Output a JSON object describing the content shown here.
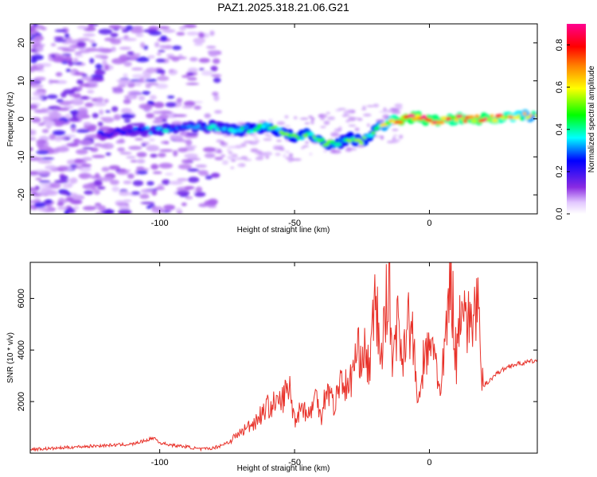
{
  "title": "PAZ1.2025.318.21.06.G21",
  "chart_data": [
    {
      "type": "heatmap",
      "xlabel": "Height of straight line (km)",
      "ylabel": "Frequency (Hz)",
      "xlim": [
        -148,
        40
      ],
      "ylim": [
        -25,
        25
      ],
      "xticks": [
        -100,
        -50,
        0
      ],
      "yticks": [
        -20,
        -10,
        0,
        10,
        20
      ],
      "colorbar": {
        "label": "Normalized spectral amplitude",
        "range": [
          0.0,
          0.9
        ],
        "ticks": [
          0.0,
          0.2,
          0.4,
          0.6,
          0.8
        ],
        "tick_labels": [
          "0.0",
          "0.2",
          "0.4",
          "0.6",
          "0.8"
        ],
        "colors": [
          "#ffffff",
          "#d9b8ff",
          "#8a2be2",
          "#0000ff",
          "#00ffff",
          "#00ff00",
          "#ffff00",
          "#ff8000",
          "#ff0000",
          "#ff0090"
        ]
      },
      "ridge": {
        "x": [
          -120,
          -110,
          -100,
          -90,
          -80,
          -70,
          -60,
          -50,
          -45,
          -40,
          -35,
          -30,
          -25,
          -20,
          -15,
          -10,
          -5,
          0,
          10,
          20,
          30,
          40
        ],
        "freq": [
          -4,
          -3,
          -3,
          -2,
          -2,
          -3,
          -2,
          -5,
          -4,
          -6,
          -7,
          -5,
          -6,
          -3,
          -1,
          0,
          0.5,
          -0.5,
          0,
          0,
          0.5,
          1
        ],
        "amp": [
          0.25,
          0.3,
          0.35,
          0.35,
          0.4,
          0.45,
          0.5,
          0.5,
          0.55,
          0.55,
          0.45,
          0.5,
          0.55,
          0.5,
          0.7,
          0.9,
          0.85,
          0.85,
          0.8,
          0.85,
          0.75,
          0.6
        ]
      }
    },
    {
      "type": "line",
      "xlabel": "Height of straight line (km)",
      "ylabel": "SNR (10 * v/v)",
      "xlim": [
        -148,
        40
      ],
      "ylim": [
        0,
        7400
      ],
      "xticks": [
        -100,
        -50,
        0
      ],
      "yticks": [
        2000,
        4000,
        6000
      ],
      "color": "#e8322a",
      "series": [
        {
          "name": "SNR",
          "x": [
            -148,
            -140,
            -130,
            -120,
            -110,
            -105,
            -102,
            -100,
            -95,
            -90,
            -85,
            -80,
            -75,
            -70,
            -65,
            -60,
            -55,
            -52,
            -50,
            -47,
            -45,
            -42,
            -40,
            -38,
            -35,
            -33,
            -30,
            -28,
            -25,
            -22,
            -20,
            -18,
            -16,
            -15,
            -14,
            -12,
            -10,
            -8,
            -6,
            -5,
            -4,
            -2,
            0,
            2,
            4,
            5,
            6,
            8,
            10,
            12,
            14,
            16,
            18,
            19,
            20,
            25,
            30,
            35,
            40
          ],
          "y": [
            150,
            180,
            250,
            300,
            350,
            500,
            600,
            400,
            300,
            250,
            150,
            200,
            400,
            800,
            1200,
            1800,
            2000,
            2600,
            1300,
            1900,
            1400,
            2200,
            1500,
            2600,
            1800,
            3000,
            2400,
            3500,
            4100,
            3300,
            6200,
            3400,
            5800,
            7300,
            3600,
            5100,
            3800,
            5300,
            4200,
            3000,
            1700,
            3800,
            3800,
            4300,
            2000,
            3200,
            4400,
            6900,
            3500,
            6700,
            4900,
            5300,
            5900,
            3000,
            2600,
            3100,
            3400,
            3500,
            3600
          ]
        }
      ]
    }
  ]
}
